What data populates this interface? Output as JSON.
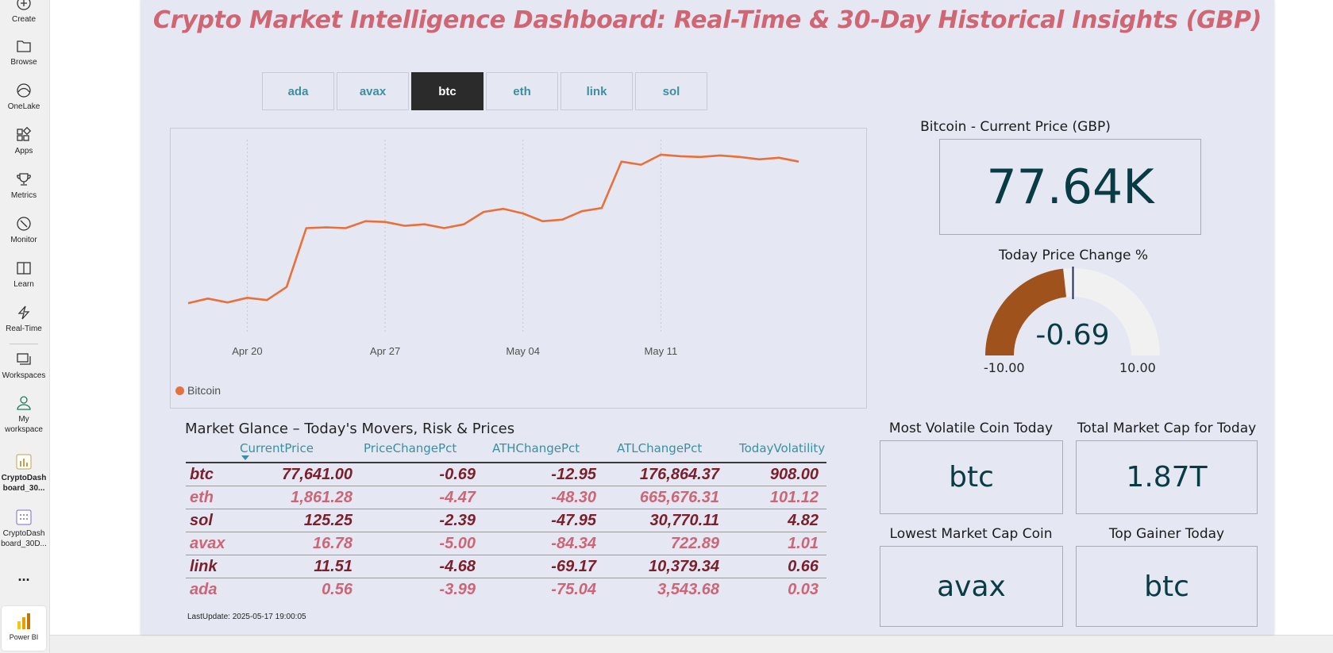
{
  "nav": {
    "items": [
      {
        "label": "Create",
        "icon": "plus-icon"
      },
      {
        "label": "Browse",
        "icon": "folder-icon"
      },
      {
        "label": "OneLake",
        "icon": "onelake-icon"
      },
      {
        "label": "Apps",
        "icon": "apps-icon"
      },
      {
        "label": "Metrics",
        "icon": "trophy-icon"
      },
      {
        "label": "Monitor",
        "icon": "monitor-icon"
      },
      {
        "label": "Learn",
        "icon": "book-icon"
      },
      {
        "label": "Real-Time",
        "icon": "lightning-icon"
      },
      {
        "label": "Workspaces",
        "icon": "workspaces-icon"
      },
      {
        "label": "My workspace",
        "icon": "user-icon"
      },
      {
        "label": "CryptoDash board_30...",
        "icon": "report-icon"
      },
      {
        "label": "CryptoDash board_30D...",
        "icon": "dataset-icon"
      }
    ],
    "more_label": "...",
    "pbi_label": "Power BI"
  },
  "report": {
    "title": "Crypto Market Intelligence Dashboard: Real-Time & 30-Day Historical Insights (GBP)",
    "slicer": [
      "ada",
      "avax",
      "btc",
      "eth",
      "link",
      "sol"
    ],
    "slicer_selected": "btc",
    "legend_label": "Bitcoin",
    "price_card": {
      "title": "Bitcoin - Current Price (GBP)",
      "value": "77.64K"
    },
    "gauge": {
      "title": "Today Price Change %",
      "value": "-0.69",
      "min": "-10.00",
      "max": "10.00",
      "value_num": -0.69,
      "min_num": -10,
      "max_num": 10,
      "fill_color": "#a0521c",
      "track_color": "#f1f1f1"
    },
    "table": {
      "title": "Market Glance – Today's Movers, Risk & Prices",
      "headers": [
        "CurrentPrice",
        "PriceChangePct",
        "ATHChangePct",
        "ATLChangePct",
        "TodayVolatility"
      ],
      "rows": [
        {
          "coin": "btc",
          "price": "77,641.00",
          "chg": "-0.69",
          "ath": "-12.95",
          "atl": "176,864.37",
          "vol": "908.00"
        },
        {
          "coin": "eth",
          "price": "1,861.28",
          "chg": "-4.47",
          "ath": "-48.30",
          "atl": "665,676.31",
          "vol": "101.12"
        },
        {
          "coin": "sol",
          "price": "125.25",
          "chg": "-2.39",
          "ath": "-47.95",
          "atl": "30,770.11",
          "vol": "4.82"
        },
        {
          "coin": "avax",
          "price": "16.78",
          "chg": "-5.00",
          "ath": "-84.34",
          "atl": "722.89",
          "vol": "1.01"
        },
        {
          "coin": "link",
          "price": "11.51",
          "chg": "-4.68",
          "ath": "-69.17",
          "atl": "10,379.34",
          "vol": "0.66"
        },
        {
          "coin": "ada",
          "price": "0.56",
          "chg": "-3.99",
          "ath": "-75.04",
          "atl": "3,543.68",
          "vol": "0.03"
        }
      ],
      "last_update": "LastUpdate: 2025-05-17 19:00:05"
    },
    "cards": [
      {
        "title": "Most Volatile Coin Today",
        "value": "btc"
      },
      {
        "title": "Total Market Cap for Today",
        "value": "1.87T"
      },
      {
        "title": "Lowest Market Cap Coin",
        "value": "avax"
      },
      {
        "title": "Top Gainer Today",
        "value": "btc"
      }
    ]
  },
  "chart_data": {
    "type": "line",
    "x_ticks": [
      "Apr 20",
      "Apr 27",
      "May 04",
      "May 11"
    ],
    "x_tick_index": [
      3,
      10,
      17,
      24
    ],
    "series": [
      {
        "name": "Bitcoin",
        "color": "#e8703a",
        "values": [
          67500,
          68100,
          67600,
          68200,
          67900,
          69600,
          77200,
          77300,
          77200,
          78100,
          78000,
          77500,
          77700,
          77200,
          77700,
          79300,
          79700,
          79100,
          78100,
          78300,
          79400,
          79800,
          85800,
          85400,
          86700,
          86500,
          86400,
          86600,
          86400,
          86100,
          86300,
          85800
        ]
      }
    ]
  }
}
